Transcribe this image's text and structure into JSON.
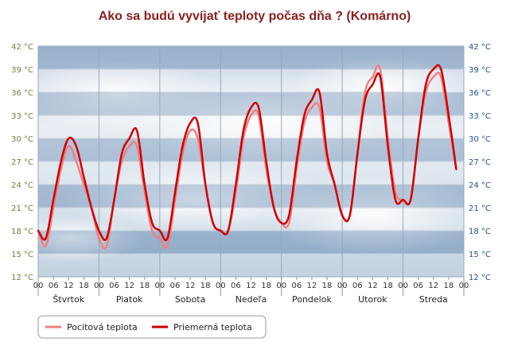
{
  "chart_data": {
    "type": "line",
    "title": "Ako sa budú vyvíjať teploty počas dňa ? (Komárno)",
    "ylim": [
      12,
      42
    ],
    "y_ticks": [
      12,
      15,
      18,
      21,
      24,
      27,
      30,
      33,
      36,
      39,
      42
    ],
    "y_unit": "°C",
    "x_range_hours": [
      0,
      168
    ],
    "hour_labels": [
      "00",
      "06",
      "12",
      "18"
    ],
    "end_hour_label": "00",
    "days": [
      "Štvrtok",
      "Piatok",
      "Sobota",
      "Nedeľa",
      "Pondelok",
      "Utorok",
      "Streda"
    ],
    "series": [
      {
        "name": "Pocitová teplota",
        "color": "#f08080",
        "points": [
          [
            0,
            18
          ],
          [
            3,
            16
          ],
          [
            6,
            21
          ],
          [
            9,
            26
          ],
          [
            12,
            29
          ],
          [
            15,
            27
          ],
          [
            18,
            24
          ],
          [
            21,
            21
          ],
          [
            24,
            17
          ],
          [
            27,
            16
          ],
          [
            30,
            22
          ],
          [
            33,
            27
          ],
          [
            36,
            29
          ],
          [
            39,
            29
          ],
          [
            42,
            23
          ],
          [
            45,
            18
          ],
          [
            48,
            17
          ],
          [
            51,
            16
          ],
          [
            54,
            22
          ],
          [
            57,
            28
          ],
          [
            60,
            31
          ],
          [
            63,
            30
          ],
          [
            66,
            24
          ],
          [
            69,
            19
          ],
          [
            72,
            18
          ],
          [
            75,
            18
          ],
          [
            78,
            23
          ],
          [
            81,
            30
          ],
          [
            84,
            33
          ],
          [
            87,
            33
          ],
          [
            90,
            26
          ],
          [
            93,
            21
          ],
          [
            96,
            19
          ],
          [
            99,
            19
          ],
          [
            102,
            26
          ],
          [
            105,
            32
          ],
          [
            108,
            34
          ],
          [
            111,
            34
          ],
          [
            114,
            27
          ],
          [
            117,
            24
          ],
          [
            120,
            20
          ],
          [
            123,
            20
          ],
          [
            126,
            28
          ],
          [
            129,
            36
          ],
          [
            132,
            38
          ],
          [
            135,
            39
          ],
          [
            138,
            30
          ],
          [
            141,
            23
          ],
          [
            144,
            22
          ],
          [
            147,
            22
          ],
          [
            150,
            30
          ],
          [
            153,
            36
          ],
          [
            156,
            38
          ],
          [
            159,
            38
          ],
          [
            162,
            32
          ],
          [
            165,
            26
          ]
        ]
      },
      {
        "name": "Priemerná teplota",
        "color": "#d00000",
        "points": [
          [
            0,
            18
          ],
          [
            3,
            17
          ],
          [
            6,
            22
          ],
          [
            9,
            27
          ],
          [
            12,
            30
          ],
          [
            15,
            29
          ],
          [
            18,
            25
          ],
          [
            21,
            21
          ],
          [
            24,
            18
          ],
          [
            27,
            17
          ],
          [
            30,
            22
          ],
          [
            33,
            28
          ],
          [
            36,
            30
          ],
          [
            39,
            31
          ],
          [
            42,
            24
          ],
          [
            45,
            19
          ],
          [
            48,
            18
          ],
          [
            51,
            17
          ],
          [
            54,
            23
          ],
          [
            57,
            29
          ],
          [
            60,
            32
          ],
          [
            63,
            32
          ],
          [
            66,
            24
          ],
          [
            69,
            19
          ],
          [
            72,
            18
          ],
          [
            75,
            18
          ],
          [
            78,
            24
          ],
          [
            81,
            31
          ],
          [
            84,
            34
          ],
          [
            87,
            34
          ],
          [
            90,
            27
          ],
          [
            93,
            21
          ],
          [
            96,
            19
          ],
          [
            99,
            20
          ],
          [
            102,
            27
          ],
          [
            105,
            33
          ],
          [
            108,
            35
          ],
          [
            111,
            36
          ],
          [
            114,
            28
          ],
          [
            117,
            24
          ],
          [
            120,
            20
          ],
          [
            123,
            20
          ],
          [
            126,
            28
          ],
          [
            129,
            35
          ],
          [
            132,
            37
          ],
          [
            135,
            38
          ],
          [
            138,
            29
          ],
          [
            141,
            22
          ],
          [
            144,
            22
          ],
          [
            147,
            22
          ],
          [
            150,
            30
          ],
          [
            153,
            37
          ],
          [
            156,
            39
          ],
          [
            159,
            39
          ],
          [
            162,
            33
          ],
          [
            165,
            26
          ]
        ]
      }
    ],
    "legend": {
      "position": "bottom-left"
    }
  }
}
